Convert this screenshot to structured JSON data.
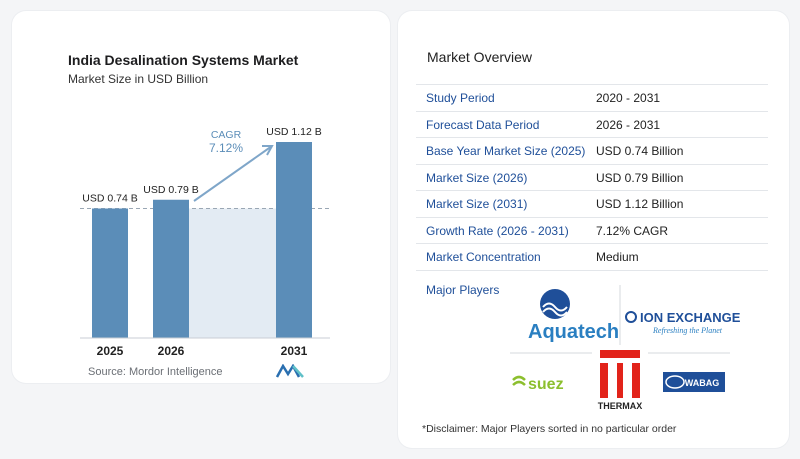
{
  "header": {
    "title": "India Desalination Systems Market",
    "subtitle": "Market Size in USD Billion"
  },
  "chart_data": {
    "type": "bar",
    "categories": [
      "2025",
      "2026",
      "2031"
    ],
    "values": [
      0.74,
      0.79,
      1.12
    ],
    "data_labels": [
      "USD 0.74 B",
      "USD 0.79 B",
      "USD 1.12 B"
    ],
    "cagr_label": "CAGR",
    "cagr_value": "7.12%",
    "bar_color": "#5b8db8",
    "band_color": "#e3ebf3",
    "arrow_color": "#7fa6c9"
  },
  "source": "Source:  Mordor Intelligence",
  "overview": {
    "title": "Market Overview",
    "rows": [
      {
        "key": "Study Period",
        "value": "2020 - 2031"
      },
      {
        "key": "Forecast Data Period",
        "value": "2026 - 2031"
      },
      {
        "key": "Base Year Market Size (2025)",
        "value": "USD 0.74 Billion"
      },
      {
        "key": "Market Size (2026)",
        "value": "USD 0.79 Billion"
      },
      {
        "key": "Market Size (2031)",
        "value": "USD 1.12 Billion"
      },
      {
        "key": "Growth Rate (2026 - 2031)",
        "value": "7.12% CAGR"
      },
      {
        "key": "Market Concentration",
        "value": "Medium"
      }
    ],
    "major_players_label": "Major Players",
    "players": {
      "aquatech": "Aquatech",
      "ion_exchange": "ION EXCHANGE",
      "ion_tagline": "Refreshing the Planet",
      "suez": "suez",
      "thermax": "THERMAX",
      "wabag": "WABAG"
    },
    "disclaimer": "*Disclaimer: Major Players sorted in no particular order"
  }
}
